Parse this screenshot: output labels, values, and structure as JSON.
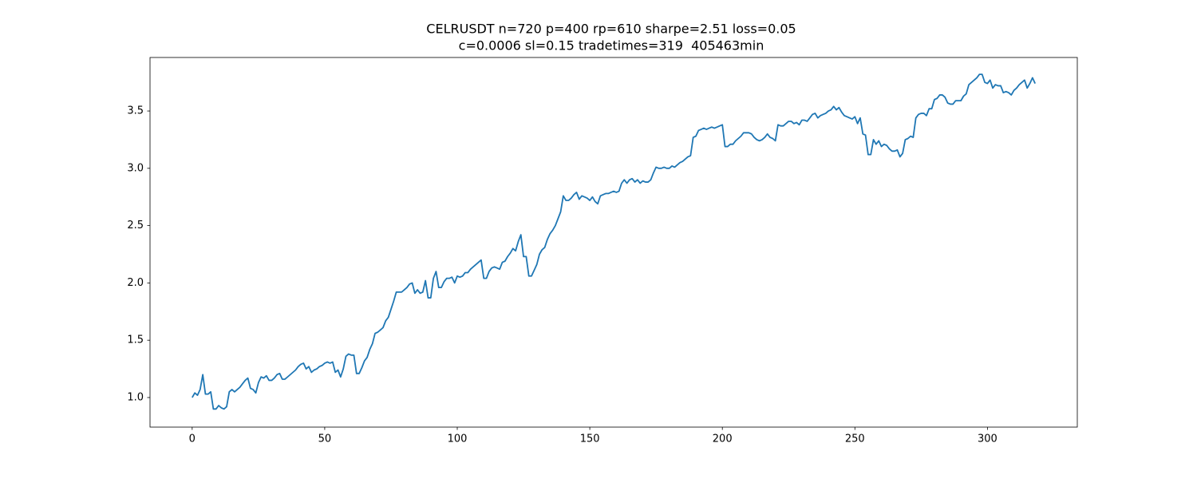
{
  "chart_data": {
    "type": "line",
    "title": [
      "CELRUSDT n=720 p=400 rp=610 sharpe=2.51 loss=0.05",
      "c=0.0006 sl=0.15 tradetimes=319  405463min"
    ],
    "color": "#1f77b4",
    "xlim": [
      -15.9,
      333.9
    ],
    "xticks": [
      0,
      50,
      100,
      150,
      200,
      250,
      300
    ],
    "ylim": [
      0.742,
      3.967
    ],
    "yticks": [
      {
        "value": 1.0,
        "label": "1.0"
      },
      1.5,
      {
        "value": 2.0,
        "label": "2.0"
      },
      2.5,
      {
        "value": 3.0,
        "label": "3.0"
      },
      3.5
    ],
    "values": [
      1.0,
      1.04,
      1.02,
      1.07,
      1.2,
      1.03,
      1.03,
      1.05,
      0.9,
      0.9,
      0.93,
      0.91,
      0.9,
      0.92,
      1.05,
      1.07,
      1.05,
      1.07,
      1.09,
      1.12,
      1.15,
      1.17,
      1.08,
      1.07,
      1.04,
      1.13,
      1.18,
      1.17,
      1.19,
      1.15,
      1.15,
      1.17,
      1.2,
      1.21,
      1.16,
      1.16,
      1.18,
      1.2,
      1.22,
      1.24,
      1.27,
      1.29,
      1.3,
      1.25,
      1.27,
      1.22,
      1.24,
      1.25,
      1.27,
      1.28,
      1.3,
      1.31,
      1.3,
      1.31,
      1.22,
      1.24,
      1.18,
      1.25,
      1.36,
      1.38,
      1.37,
      1.37,
      1.21,
      1.21,
      1.26,
      1.32,
      1.35,
      1.42,
      1.47,
      1.56,
      1.57,
      1.59,
      1.61,
      1.67,
      1.7,
      1.77,
      1.84,
      1.92,
      1.92,
      1.92,
      1.94,
      1.96,
      1.99,
      2.0,
      1.91,
      1.94,
      1.91,
      1.92,
      2.02,
      1.87,
      1.87,
      2.04,
      2.1,
      1.96,
      1.96,
      2.01,
      2.04,
      2.04,
      2.05,
      2.0,
      2.06,
      2.05,
      2.06,
      2.09,
      2.09,
      2.12,
      2.14,
      2.16,
      2.18,
      2.2,
      2.04,
      2.04,
      2.1,
      2.13,
      2.14,
      2.13,
      2.12,
      2.18,
      2.19,
      2.23,
      2.26,
      2.3,
      2.28,
      2.36,
      2.42,
      2.23,
      2.23,
      2.06,
      2.06,
      2.11,
      2.16,
      2.25,
      2.29,
      2.31,
      2.38,
      2.43,
      2.46,
      2.5,
      2.56,
      2.62,
      2.76,
      2.72,
      2.72,
      2.74,
      2.77,
      2.79,
      2.73,
      2.76,
      2.75,
      2.74,
      2.72,
      2.75,
      2.71,
      2.69,
      2.76,
      2.77,
      2.78,
      2.78,
      2.79,
      2.8,
      2.79,
      2.8,
      2.87,
      2.9,
      2.87,
      2.9,
      2.91,
      2.88,
      2.9,
      2.87,
      2.89,
      2.88,
      2.88,
      2.9,
      2.96,
      3.01,
      3.0,
      3.0,
      3.01,
      3.0,
      3.0,
      3.02,
      3.01,
      3.03,
      3.05,
      3.06,
      3.08,
      3.1,
      3.11,
      3.27,
      3.28,
      3.33,
      3.34,
      3.35,
      3.34,
      3.35,
      3.36,
      3.35,
      3.36,
      3.37,
      3.38,
      3.19,
      3.19,
      3.21,
      3.21,
      3.24,
      3.26,
      3.28,
      3.31,
      3.31,
      3.31,
      3.3,
      3.27,
      3.25,
      3.24,
      3.25,
      3.27,
      3.3,
      3.27,
      3.26,
      3.24,
      3.38,
      3.37,
      3.37,
      3.39,
      3.41,
      3.41,
      3.39,
      3.4,
      3.38,
      3.42,
      3.42,
      3.41,
      3.44,
      3.47,
      3.48,
      3.44,
      3.46,
      3.47,
      3.48,
      3.5,
      3.51,
      3.54,
      3.51,
      3.53,
      3.49,
      3.46,
      3.45,
      3.44,
      3.43,
      3.45,
      3.39,
      3.44,
      3.3,
      3.29,
      3.12,
      3.12,
      3.25,
      3.21,
      3.24,
      3.19,
      3.21,
      3.2,
      3.17,
      3.15,
      3.15,
      3.16,
      3.1,
      3.13,
      3.25,
      3.26,
      3.28,
      3.27,
      3.44,
      3.47,
      3.48,
      3.48,
      3.46,
      3.52,
      3.52,
      3.6,
      3.61,
      3.64,
      3.64,
      3.62,
      3.57,
      3.56,
      3.56,
      3.59,
      3.59,
      3.59,
      3.63,
      3.65,
      3.73,
      3.75,
      3.77,
      3.79,
      3.82,
      3.82,
      3.75,
      3.74,
      3.77,
      3.7,
      3.73,
      3.72,
      3.72,
      3.66,
      3.67,
      3.66,
      3.64,
      3.68,
      3.7,
      3.73,
      3.75,
      3.77,
      3.7,
      3.74,
      3.79,
      3.74
    ]
  }
}
